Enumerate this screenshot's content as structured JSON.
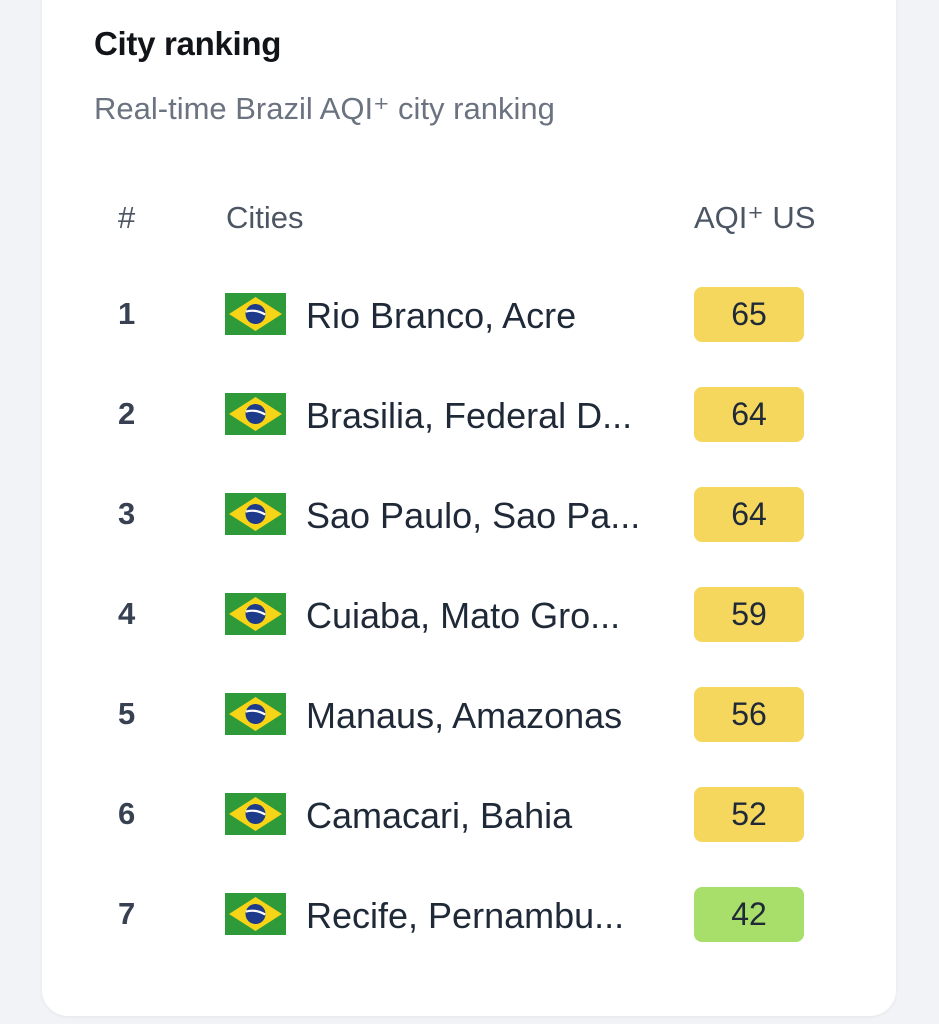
{
  "header": {
    "title": "City ranking",
    "subtitle": "Real-time Brazil AQI⁺ city ranking"
  },
  "table": {
    "columns": [
      "#",
      "Cities",
      "AQI⁺ US"
    ],
    "rows": [
      {
        "rank": "1",
        "city": "Rio Branco, Acre",
        "aqi": "65",
        "color": "#f5d75e"
      },
      {
        "rank": "2",
        "city": "Brasilia, Federal D...",
        "aqi": "64",
        "color": "#f5d75e"
      },
      {
        "rank": "3",
        "city": "Sao Paulo, Sao Pa...",
        "aqi": "64",
        "color": "#f5d75e"
      },
      {
        "rank": "4",
        "city": "Cuiaba, Mato Gro...",
        "aqi": "59",
        "color": "#f5d75e"
      },
      {
        "rank": "5",
        "city": "Manaus, Amazonas",
        "aqi": "56",
        "color": "#f5d75e"
      },
      {
        "rank": "6",
        "city": "Camacari, Bahia",
        "aqi": "52",
        "color": "#f5d75e"
      },
      {
        "rank": "7",
        "city": "Recife, Pernambu...",
        "aqi": "42",
        "color": "#a8de6a"
      }
    ],
    "flag_icon": "brazil-flag-icon"
  }
}
